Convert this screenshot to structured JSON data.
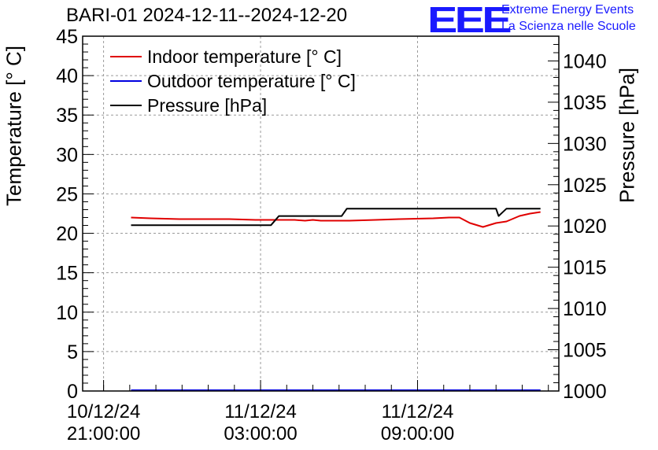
{
  "chart_data": {
    "type": "line",
    "title": "BARI-01 2024-12-11--2024-12-20",
    "ylabel_left": "Temperature [° C]",
    "ylabel_right": "Pressure [hPa]",
    "ylim_left": [
      0,
      45
    ],
    "ylim_right": [
      1000,
      1043
    ],
    "y_ticks_left": [
      "0",
      "5",
      "10",
      "15",
      "20",
      "25",
      "30",
      "35",
      "40",
      "45"
    ],
    "y_ticks_right": [
      "1000",
      "1005",
      "1010",
      "1015",
      "1020",
      "1025",
      "1030",
      "1035",
      "1040"
    ],
    "x_unit": "hours since 10/12/24 21:00:00",
    "xlim": [
      -0.8,
      17.4
    ],
    "x_ticks": [
      {
        "x": 0,
        "date": "10/12/24",
        "time": "21:00:00"
      },
      {
        "x": 6,
        "date": "11/12/24",
        "time": "03:00:00"
      },
      {
        "x": 12,
        "date": "11/12/24",
        "time": "09:00:00"
      }
    ],
    "grid": true,
    "legend_position": "top-left",
    "series": [
      {
        "name": "Indoor temperature [° C]",
        "axis": "left",
        "color": "#e00000",
        "x": [
          1.05,
          1.8,
          2.9,
          4.8,
          5.8,
          6.6,
          7.3,
          7.7,
          8.0,
          8.3,
          9.4,
          10.4,
          11.3,
          12.6,
          13.2,
          13.6,
          14.0,
          14.5,
          15.0,
          15.4,
          15.9,
          16.3,
          16.7
        ],
        "values": [
          22.0,
          21.9,
          21.8,
          21.8,
          21.7,
          21.7,
          21.7,
          21.6,
          21.7,
          21.6,
          21.6,
          21.7,
          21.8,
          21.9,
          22.0,
          22.0,
          21.3,
          20.8,
          21.3,
          21.5,
          22.2,
          22.5,
          22.7
        ]
      },
      {
        "name": "Outdoor temperature [° C]",
        "axis": "left",
        "color": "#0000e0",
        "x": [
          1.05,
          16.7
        ],
        "values": [
          0.1,
          0.1
        ]
      },
      {
        "name": "Pressure [hPa]",
        "axis": "right",
        "color": "#000000",
        "x": [
          1.05,
          6.4,
          6.7,
          9.1,
          9.3,
          15.0,
          15.1,
          15.4,
          16.7
        ],
        "values": [
          1020.1,
          1020.1,
          1021.2,
          1021.2,
          1022.1,
          1022.1,
          1021.2,
          1022.1,
          1022.1
        ]
      }
    ]
  },
  "logo": {
    "text": "EEE",
    "line1": "Extreme Energy Events",
    "line2": "La Scienza nelle Scuole"
  }
}
